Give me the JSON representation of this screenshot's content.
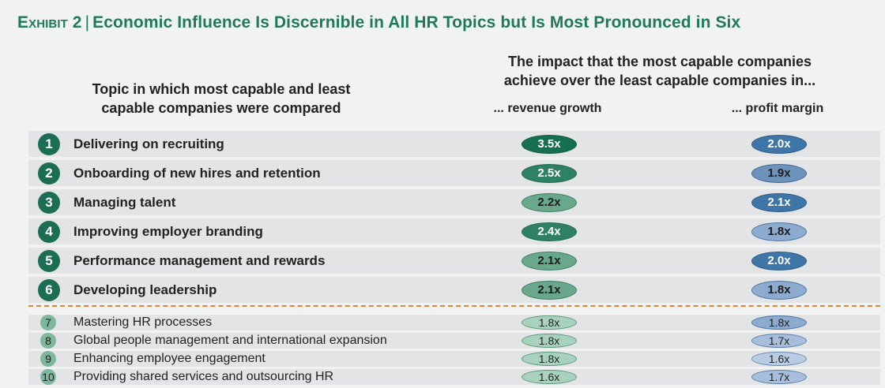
{
  "title": {
    "exhibit": "Exhibit 2",
    "text": "Economic Influence Is Discernible in All HR Topics but Is Most Pronounced in Six"
  },
  "header": {
    "left_line1": "Topic in which most capable and least",
    "left_line2": "capable companies were compared",
    "right_line1": "The impact that the most capable companies",
    "right_line2": "achieve over the least capable companies in...",
    "col_revenue": "... revenue growth",
    "col_profit": "... profit margin"
  },
  "colors": {
    "title": "#1f7a5a",
    "number_major": "#1b6e53",
    "number_minor": "#7fb79c",
    "divider": "#e0823c"
  },
  "chart_data": {
    "type": "table",
    "title": "Economic Influence Is Discernible in All HR Topics but Is Most Pronounced in Six",
    "columns": [
      "... revenue growth",
      "... profit margin"
    ],
    "rows": [
      {
        "num": "1",
        "topic": "Delivering on recruiting",
        "revenue": "3.5x",
        "profit": "2.0x",
        "revenue_value": 3.5,
        "profit_value": 2.0,
        "major": true
      },
      {
        "num": "2",
        "topic": "Onboarding of new hires and retention",
        "revenue": "2.5x",
        "profit": "1.9x",
        "revenue_value": 2.5,
        "profit_value": 1.9,
        "major": true
      },
      {
        "num": "3",
        "topic": "Managing talent",
        "revenue": "2.2x",
        "profit": "2.1x",
        "revenue_value": 2.2,
        "profit_value": 2.1,
        "major": true
      },
      {
        "num": "4",
        "topic": "Improving employer branding",
        "revenue": "2.4x",
        "profit": "1.8x",
        "revenue_value": 2.4,
        "profit_value": 1.8,
        "major": true
      },
      {
        "num": "5",
        "topic": "Performance management and rewards",
        "revenue": "2.1x",
        "profit": "2.0x",
        "revenue_value": 2.1,
        "profit_value": 2.0,
        "major": true
      },
      {
        "num": "6",
        "topic": "Developing leadership",
        "revenue": "2.1x",
        "profit": "1.8x",
        "revenue_value": 2.1,
        "profit_value": 1.8,
        "major": true
      },
      {
        "num": "7",
        "topic": "Mastering HR processes",
        "revenue": "1.8x",
        "profit": "1.8x",
        "revenue_value": 1.8,
        "profit_value": 1.8,
        "major": false
      },
      {
        "num": "8",
        "topic": "Global people management and international expansion",
        "revenue": "1.8x",
        "profit": "1.7x",
        "revenue_value": 1.8,
        "profit_value": 1.7,
        "major": false
      },
      {
        "num": "9",
        "topic": "Enhancing employee engagement",
        "revenue": "1.8x",
        "profit": "1.6x",
        "revenue_value": 1.8,
        "profit_value": 1.6,
        "major": false
      },
      {
        "num": "10",
        "topic": "Providing shared services and outsourcing HR",
        "revenue": "1.6x",
        "profit": "1.7x",
        "revenue_value": 1.6,
        "profit_value": 1.7,
        "major": false
      }
    ]
  }
}
